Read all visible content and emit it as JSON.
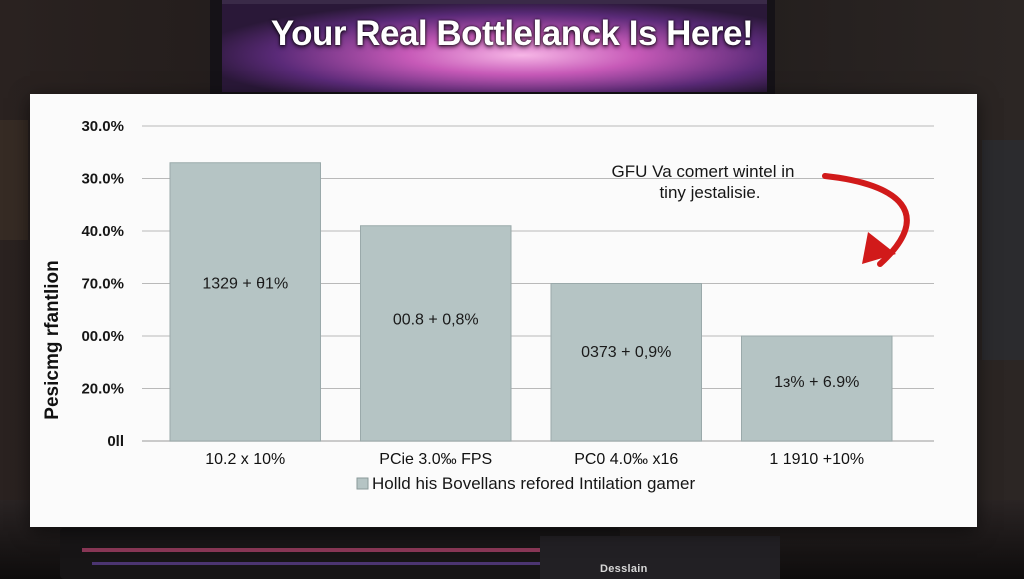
{
  "headline": "Your Real Bottlelanck Is Here!",
  "monitor_brand": "Desslain",
  "colors": {
    "bar": "#b5c4c4",
    "bar_edge": "#9aa9aa",
    "grid": "#b9b9b9",
    "arrow": "#d11a1a",
    "card": "#fbfbfb",
    "legend_swatch": "#b5c4c4"
  },
  "chart_data": {
    "type": "bar",
    "ylabel": "Pesicmg rfantlion",
    "y_tick_labels": [
      "30.0%",
      "30.0%",
      "40.0%",
      "70.0%",
      "00.0%",
      "20.0%",
      "0ll"
    ],
    "categories": [
      "10.2 x 10%",
      "PCie 3.0‰ FPS",
      "PC0 4.0‰ x16",
      "1 1910 +10%"
    ],
    "values": [
      5.3,
      4.1,
      3.0,
      2.0
    ],
    "ylim": [
      0,
      6
    ],
    "bar_labels": [
      "1329 + θ1%",
      "00.8 + 0,8%",
      "0373 + 0,9%",
      "1з% + 6.9%"
    ],
    "annotation": {
      "line1": "GFU Va comert wintel in",
      "line2": "tiny jestalisie."
    },
    "legend": {
      "label": "Holld his Bovellans refored Intilation gamer",
      "placement": "bottom"
    },
    "grid": true
  }
}
